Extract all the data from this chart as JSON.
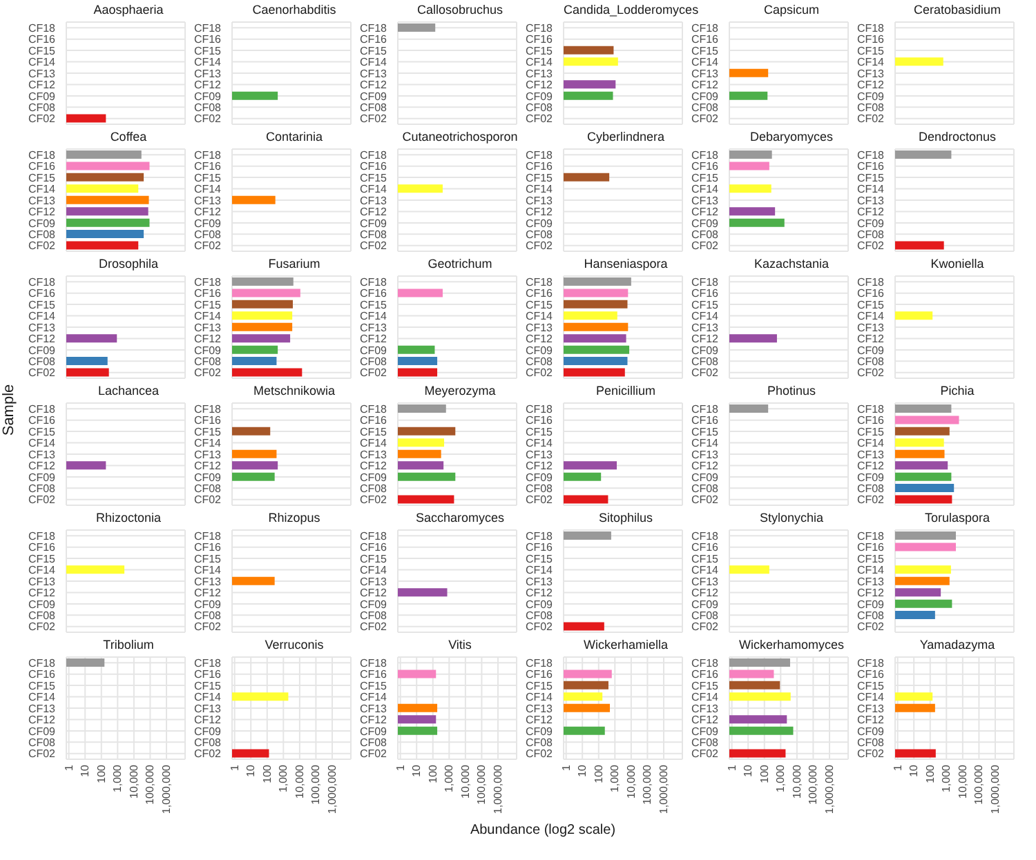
{
  "chart_data": [
    {
      "type": "bar",
      "orientation": "horizontal",
      "title": "Aaosphaeria",
      "categories": [
        "CF18",
        "CF16",
        "CF15",
        "CF14",
        "CF13",
        "CF12",
        "CF09",
        "CF08",
        "CF02"
      ],
      "values": [
        null,
        null,
        null,
        null,
        null,
        null,
        null,
        null,
        190
      ],
      "colors": [
        "#999999",
        "#f781bf",
        "#a65628",
        "#ffff33",
        "#ff7f00",
        "#984ea3",
        "#4daf4a",
        "#377eb8",
        "#e41a1c"
      ],
      "log": "x",
      "xlim": [
        0.7,
        14000000
      ],
      "xticks": [
        1,
        10,
        100,
        1000,
        10000,
        100000,
        1000000
      ],
      "grid": true,
      "tick_labels": "y"
    },
    {
      "type": "bar",
      "orientation": "horizontal",
      "title": "Caenorhabditis",
      "categories": [
        "CF18",
        "CF16",
        "CF15",
        "CF14",
        "CF13",
        "CF12",
        "CF09",
        "CF08",
        "CF02"
      ],
      "values": [
        null,
        null,
        null,
        null,
        null,
        null,
        450,
        null,
        null
      ],
      "colors": [
        "#999999",
        "#f781bf",
        "#a65628",
        "#ffff33",
        "#ff7f00",
        "#984ea3",
        "#4daf4a",
        "#377eb8",
        "#e41a1c"
      ],
      "log": "x",
      "xlim": [
        0.7,
        14000000
      ],
      "xticks": [
        1,
        10,
        100,
        1000,
        10000,
        100000,
        1000000
      ],
      "grid": true,
      "tick_labels": "y"
    },
    {
      "type": "bar",
      "orientation": "horizontal",
      "title": "Callosobruchus",
      "categories": [
        "CF18",
        "CF16",
        "CF15",
        "CF14",
        "CF13",
        "CF12",
        "CF09",
        "CF08",
        "CF02"
      ],
      "values": [
        140,
        null,
        null,
        null,
        null,
        null,
        null,
        null,
        null
      ],
      "colors": [
        "#999999",
        "#f781bf",
        "#a65628",
        "#ffff33",
        "#ff7f00",
        "#984ea3",
        "#4daf4a",
        "#377eb8",
        "#e41a1c"
      ],
      "log": "x",
      "xlim": [
        0.7,
        14000000
      ],
      "xticks": [
        1,
        10,
        100,
        1000,
        10000,
        100000,
        1000000
      ],
      "grid": true,
      "tick_labels": "y"
    },
    {
      "type": "bar",
      "orientation": "horizontal",
      "title": "Candida_Lodderomyces",
      "categories": [
        "CF18",
        "CF16",
        "CF15",
        "CF14",
        "CF13",
        "CF12",
        "CF09",
        "CF08",
        "CF02"
      ],
      "values": [
        null,
        null,
        830,
        1550,
        null,
        1100,
        760,
        null,
        null
      ],
      "colors": [
        "#999999",
        "#f781bf",
        "#a65628",
        "#ffff33",
        "#ff7f00",
        "#984ea3",
        "#4daf4a",
        "#377eb8",
        "#e41a1c"
      ],
      "log": "x",
      "xlim": [
        0.7,
        14000000
      ],
      "xticks": [
        1,
        10,
        100,
        1000,
        10000,
        100000,
        1000000
      ],
      "grid": true,
      "tick_labels": "y"
    },
    {
      "type": "bar",
      "orientation": "horizontal",
      "title": "Capsicum",
      "categories": [
        "CF18",
        "CF16",
        "CF15",
        "CF14",
        "CF13",
        "CF12",
        "CF09",
        "CF08",
        "CF02"
      ],
      "values": [
        null,
        null,
        null,
        null,
        170,
        null,
        155,
        null,
        null
      ],
      "colors": [
        "#999999",
        "#f781bf",
        "#a65628",
        "#ffff33",
        "#ff7f00",
        "#984ea3",
        "#4daf4a",
        "#377eb8",
        "#e41a1c"
      ],
      "log": "x",
      "xlim": [
        0.7,
        14000000
      ],
      "xticks": [
        1,
        10,
        100,
        1000,
        10000,
        100000,
        1000000
      ],
      "grid": true,
      "tick_labels": "y"
    },
    {
      "type": "bar",
      "orientation": "horizontal",
      "title": "Ceratobasidium",
      "categories": [
        "CF18",
        "CF16",
        "CF15",
        "CF14",
        "CF13",
        "CF12",
        "CF09",
        "CF08",
        "CF02"
      ],
      "values": [
        null,
        null,
        null,
        640,
        null,
        null,
        null,
        null,
        null
      ],
      "colors": [
        "#999999",
        "#f781bf",
        "#a65628",
        "#ffff33",
        "#ff7f00",
        "#984ea3",
        "#4daf4a",
        "#377eb8",
        "#e41a1c"
      ],
      "log": "x",
      "xlim": [
        0.7,
        14000000
      ],
      "xticks": [
        1,
        10,
        100,
        1000,
        10000,
        100000,
        1000000
      ],
      "grid": true,
      "tick_labels": "y"
    },
    {
      "type": "bar",
      "orientation": "horizontal",
      "title": "Coffea",
      "categories": [
        "CF18",
        "CF16",
        "CF15",
        "CF14",
        "CF13",
        "CF12",
        "CF09",
        "CF08",
        "CF02"
      ],
      "values": [
        29000,
        91000,
        40000,
        18600,
        83000,
        76000,
        91000,
        40000,
        18600
      ],
      "colors": [
        "#999999",
        "#f781bf",
        "#a65628",
        "#ffff33",
        "#ff7f00",
        "#984ea3",
        "#4daf4a",
        "#377eb8",
        "#e41a1c"
      ],
      "log": "x",
      "xlim": [
        0.7,
        14000000
      ],
      "xticks": [
        1,
        10,
        100,
        1000,
        10000,
        100000,
        1000000
      ],
      "grid": true,
      "tick_labels": "y"
    },
    {
      "type": "bar",
      "orientation": "horizontal",
      "title": "Contarinia",
      "categories": [
        "CF18",
        "CF16",
        "CF15",
        "CF14",
        "CF13",
        "CF12",
        "CF09",
        "CF08",
        "CF02"
      ],
      "values": [
        null,
        null,
        null,
        null,
        320,
        null,
        null,
        null,
        null
      ],
      "colors": [
        "#999999",
        "#f781bf",
        "#a65628",
        "#ffff33",
        "#ff7f00",
        "#984ea3",
        "#4daf4a",
        "#377eb8",
        "#e41a1c"
      ],
      "log": "x",
      "xlim": [
        0.7,
        14000000
      ],
      "xticks": [
        1,
        10,
        100,
        1000,
        10000,
        100000,
        1000000
      ],
      "grid": true,
      "tick_labels": "y"
    },
    {
      "type": "bar",
      "orientation": "horizontal",
      "title": "Cutaneotrichosporon",
      "categories": [
        "CF18",
        "CF16",
        "CF15",
        "CF14",
        "CF13",
        "CF12",
        "CF09",
        "CF08",
        "CF02"
      ],
      "values": [
        null,
        null,
        null,
        400,
        null,
        null,
        null,
        null,
        null
      ],
      "colors": [
        "#999999",
        "#f781bf",
        "#a65628",
        "#ffff33",
        "#ff7f00",
        "#984ea3",
        "#4daf4a",
        "#377eb8",
        "#e41a1c"
      ],
      "log": "x",
      "xlim": [
        0.7,
        14000000
      ],
      "xticks": [
        1,
        10,
        100,
        1000,
        10000,
        100000,
        1000000
      ],
      "grid": true,
      "tick_labels": "y"
    },
    {
      "type": "bar",
      "orientation": "horizontal",
      "title": "Cyberlindnera",
      "categories": [
        "CF18",
        "CF16",
        "CF15",
        "CF14",
        "CF13",
        "CF12",
        "CF09",
        "CF08",
        "CF02"
      ],
      "values": [
        null,
        null,
        450,
        null,
        null,
        null,
        null,
        null,
        null
      ],
      "colors": [
        "#999999",
        "#f781bf",
        "#a65628",
        "#ffff33",
        "#ff7f00",
        "#984ea3",
        "#4daf4a",
        "#377eb8",
        "#e41a1c"
      ],
      "log": "x",
      "xlim": [
        0.7,
        14000000
      ],
      "xticks": [
        1,
        10,
        100,
        1000,
        10000,
        100000,
        1000000
      ],
      "grid": true,
      "tick_labels": "y"
    },
    {
      "type": "bar",
      "orientation": "horizontal",
      "title": "Debaryomyces",
      "categories": [
        "CF18",
        "CF16",
        "CF15",
        "CF14",
        "CF13",
        "CF12",
        "CF09",
        "CF08",
        "CF02"
      ],
      "values": [
        290,
        200,
        null,
        265,
        null,
        450,
        1700,
        null,
        null
      ],
      "colors": [
        "#999999",
        "#f781bf",
        "#a65628",
        "#ffff33",
        "#ff7f00",
        "#984ea3",
        "#4daf4a",
        "#377eb8",
        "#e41a1c"
      ],
      "log": "x",
      "xlim": [
        0.7,
        14000000
      ],
      "xticks": [
        1,
        10,
        100,
        1000,
        10000,
        100000,
        1000000
      ],
      "grid": true,
      "tick_labels": "y"
    },
    {
      "type": "bar",
      "orientation": "horizontal",
      "title": "Dendroctonus",
      "categories": [
        "CF18",
        "CF16",
        "CF15",
        "CF14",
        "CF13",
        "CF12",
        "CF09",
        "CF08",
        "CF02"
      ],
      "values": [
        2000,
        null,
        null,
        null,
        null,
        null,
        null,
        null,
        700
      ],
      "colors": [
        "#999999",
        "#f781bf",
        "#a65628",
        "#ffff33",
        "#ff7f00",
        "#984ea3",
        "#4daf4a",
        "#377eb8",
        "#e41a1c"
      ],
      "log": "x",
      "xlim": [
        0.7,
        14000000
      ],
      "xticks": [
        1,
        10,
        100,
        1000,
        10000,
        100000,
        1000000
      ],
      "grid": true,
      "tick_labels": "y"
    },
    {
      "type": "bar",
      "orientation": "horizontal",
      "title": "Drosophila",
      "categories": [
        "CF18",
        "CF16",
        "CF15",
        "CF14",
        "CF13",
        "CF12",
        "CF09",
        "CF08",
        "CF02"
      ],
      "values": [
        null,
        null,
        null,
        null,
        null,
        900,
        null,
        240,
        290
      ],
      "colors": [
        "#999999",
        "#f781bf",
        "#a65628",
        "#ffff33",
        "#ff7f00",
        "#984ea3",
        "#4daf4a",
        "#377eb8",
        "#e41a1c"
      ],
      "log": "x",
      "xlim": [
        0.7,
        14000000
      ],
      "xticks": [
        1,
        10,
        100,
        1000,
        10000,
        100000,
        1000000
      ],
      "grid": true,
      "tick_labels": "y"
    },
    {
      "type": "bar",
      "orientation": "horizontal",
      "title": "Fusarium",
      "categories": [
        "CF18",
        "CF16",
        "CF15",
        "CF14",
        "CF13",
        "CF12",
        "CF09",
        "CF08",
        "CF02"
      ],
      "values": [
        4100,
        11000,
        3800,
        3500,
        3500,
        2600,
        450,
        380,
        14000
      ],
      "colors": [
        "#999999",
        "#f781bf",
        "#a65628",
        "#ffff33",
        "#ff7f00",
        "#984ea3",
        "#4daf4a",
        "#377eb8",
        "#e41a1c"
      ],
      "log": "x",
      "xlim": [
        0.7,
        14000000
      ],
      "xticks": [
        1,
        10,
        100,
        1000,
        10000,
        100000,
        1000000
      ],
      "grid": true,
      "tick_labels": "y"
    },
    {
      "type": "bar",
      "orientation": "horizontal",
      "title": "Geotrichum",
      "categories": [
        "CF18",
        "CF16",
        "CF15",
        "CF14",
        "CF13",
        "CF12",
        "CF09",
        "CF08",
        "CF02"
      ],
      "values": [
        null,
        400,
        null,
        null,
        null,
        null,
        130,
        185,
        185
      ],
      "colors": [
        "#999999",
        "#f781bf",
        "#a65628",
        "#ffff33",
        "#ff7f00",
        "#984ea3",
        "#4daf4a",
        "#377eb8",
        "#e41a1c"
      ],
      "log": "x",
      "xlim": [
        0.7,
        14000000
      ],
      "xticks": [
        1,
        10,
        100,
        1000,
        10000,
        100000,
        1000000
      ],
      "grid": true,
      "tick_labels": "y"
    },
    {
      "type": "bar",
      "orientation": "horizontal",
      "title": "Hanseniaspora",
      "categories": [
        "CF18",
        "CF16",
        "CF15",
        "CF14",
        "CF13",
        "CF12",
        "CF09",
        "CF08",
        "CF02"
      ],
      "values": [
        10000,
        6400,
        5900,
        1400,
        6400,
        4900,
        7600,
        5900,
        4100
      ],
      "colors": [
        "#999999",
        "#f781bf",
        "#a65628",
        "#ffff33",
        "#ff7f00",
        "#984ea3",
        "#4daf4a",
        "#377eb8",
        "#e41a1c"
      ],
      "log": "x",
      "xlim": [
        0.7,
        14000000
      ],
      "xticks": [
        1,
        10,
        100,
        1000,
        10000,
        100000,
        1000000
      ],
      "grid": true,
      "tick_labels": "y"
    },
    {
      "type": "bar",
      "orientation": "horizontal",
      "title": "Kazachstania",
      "categories": [
        "CF18",
        "CF16",
        "CF15",
        "CF14",
        "CF13",
        "CF12",
        "CF09",
        "CF08",
        "CF02"
      ],
      "values": [
        null,
        null,
        null,
        null,
        null,
        590,
        null,
        null,
        null
      ],
      "colors": [
        "#999999",
        "#f781bf",
        "#a65628",
        "#ffff33",
        "#ff7f00",
        "#984ea3",
        "#4daf4a",
        "#377eb8",
        "#e41a1c"
      ],
      "log": "x",
      "xlim": [
        0.7,
        14000000
      ],
      "xticks": [
        1,
        10,
        100,
        1000,
        10000,
        100000,
        1000000
      ],
      "grid": true,
      "tick_labels": "y"
    },
    {
      "type": "bar",
      "orientation": "horizontal",
      "title": "Kwoniella",
      "categories": [
        "CF18",
        "CF16",
        "CF15",
        "CF14",
        "CF13",
        "CF12",
        "CF09",
        "CF08",
        "CF02"
      ],
      "values": [
        null,
        null,
        null,
        140,
        null,
        null,
        null,
        null,
        null
      ],
      "colors": [
        "#999999",
        "#f781bf",
        "#a65628",
        "#ffff33",
        "#ff7f00",
        "#984ea3",
        "#4daf4a",
        "#377eb8",
        "#e41a1c"
      ],
      "log": "x",
      "xlim": [
        0.7,
        14000000
      ],
      "xticks": [
        1,
        10,
        100,
        1000,
        10000,
        100000,
        1000000
      ],
      "grid": true,
      "tick_labels": "y"
    },
    {
      "type": "bar",
      "orientation": "horizontal",
      "title": "Lachancea",
      "ylabel": "Sample",
      "categories": [
        "CF18",
        "CF16",
        "CF15",
        "CF14",
        "CF13",
        "CF12",
        "CF09",
        "CF08",
        "CF02"
      ],
      "values": [
        null,
        null,
        null,
        null,
        null,
        190,
        null,
        null,
        null
      ],
      "colors": [
        "#999999",
        "#f781bf",
        "#a65628",
        "#ffff33",
        "#ff7f00",
        "#984ea3",
        "#4daf4a",
        "#377eb8",
        "#e41a1c"
      ],
      "log": "x",
      "xlim": [
        0.7,
        14000000
      ],
      "xticks": [
        1,
        10,
        100,
        1000,
        10000,
        100000,
        1000000
      ],
      "grid": true,
      "tick_labels": "y"
    },
    {
      "type": "bar",
      "orientation": "horizontal",
      "title": "Metschnikowia",
      "categories": [
        "CF18",
        "CF16",
        "CF15",
        "CF14",
        "CF13",
        "CF12",
        "CF09",
        "CF08",
        "CF02"
      ],
      "values": [
        null,
        null,
        155,
        null,
        380,
        450,
        290,
        null,
        null
      ],
      "colors": [
        "#999999",
        "#f781bf",
        "#a65628",
        "#ffff33",
        "#ff7f00",
        "#984ea3",
        "#4daf4a",
        "#377eb8",
        "#e41a1c"
      ],
      "log": "x",
      "xlim": [
        0.7,
        14000000
      ],
      "xticks": [
        1,
        10,
        100,
        1000,
        10000,
        100000,
        1000000
      ],
      "grid": true,
      "tick_labels": "y"
    },
    {
      "type": "bar",
      "orientation": "horizontal",
      "title": "Meyerozyma",
      "categories": [
        "CF18",
        "CF16",
        "CF15",
        "CF14",
        "CF13",
        "CF12",
        "CF09",
        "CF08",
        "CF02"
      ],
      "values": [
        640,
        null,
        2400,
        490,
        320,
        450,
        2400,
        null,
        2000
      ],
      "colors": [
        "#999999",
        "#f781bf",
        "#a65628",
        "#ffff33",
        "#ff7f00",
        "#984ea3",
        "#4daf4a",
        "#377eb8",
        "#e41a1c"
      ],
      "log": "x",
      "xlim": [
        0.7,
        14000000
      ],
      "xticks": [
        1,
        10,
        100,
        1000,
        10000,
        100000,
        1000000
      ],
      "grid": true,
      "tick_labels": "y"
    },
    {
      "type": "bar",
      "orientation": "horizontal",
      "title": "Penicillium",
      "categories": [
        "CF18",
        "CF16",
        "CF15",
        "CF14",
        "CF13",
        "CF12",
        "CF09",
        "CF08",
        "CF02"
      ],
      "values": [
        null,
        null,
        null,
        null,
        null,
        1300,
        140,
        null,
        380
      ],
      "colors": [
        "#999999",
        "#f781bf",
        "#a65628",
        "#ffff33",
        "#ff7f00",
        "#984ea3",
        "#4daf4a",
        "#377eb8",
        "#e41a1c"
      ],
      "log": "x",
      "xlim": [
        0.7,
        14000000
      ],
      "xticks": [
        1,
        10,
        100,
        1000,
        10000,
        100000,
        1000000
      ],
      "grid": true,
      "tick_labels": "y"
    },
    {
      "type": "bar",
      "orientation": "horizontal",
      "title": "Photinus",
      "categories": [
        "CF18",
        "CF16",
        "CF15",
        "CF14",
        "CF13",
        "CF12",
        "CF09",
        "CF08",
        "CF02"
      ],
      "values": [
        170,
        null,
        null,
        null,
        null,
        null,
        null,
        null,
        null
      ],
      "colors": [
        "#999999",
        "#f781bf",
        "#a65628",
        "#ffff33",
        "#ff7f00",
        "#984ea3",
        "#4daf4a",
        "#377eb8",
        "#e41a1c"
      ],
      "log": "x",
      "xlim": [
        0.7,
        14000000
      ],
      "xticks": [
        1,
        10,
        100,
        1000,
        10000,
        100000,
        1000000
      ],
      "grid": true,
      "tick_labels": "y"
    },
    {
      "type": "bar",
      "orientation": "horizontal",
      "title": "Pichia",
      "categories": [
        "CF18",
        "CF16",
        "CF15",
        "CF14",
        "CF13",
        "CF12",
        "CF09",
        "CF08",
        "CF02"
      ],
      "values": [
        2000,
        5900,
        1550,
        700,
        760,
        1200,
        2000,
        2900,
        2200
      ],
      "colors": [
        "#999999",
        "#f781bf",
        "#a65628",
        "#ffff33",
        "#ff7f00",
        "#984ea3",
        "#4daf4a",
        "#377eb8",
        "#e41a1c"
      ],
      "log": "x",
      "xlim": [
        0.7,
        14000000
      ],
      "xticks": [
        1,
        10,
        100,
        1000,
        10000,
        100000,
        1000000
      ],
      "grid": true,
      "tick_labels": "y"
    },
    {
      "type": "bar",
      "orientation": "horizontal",
      "title": "Rhizoctonia",
      "categories": [
        "CF18",
        "CF16",
        "CF15",
        "CF14",
        "CF13",
        "CF12",
        "CF09",
        "CF08",
        "CF02"
      ],
      "values": [
        null,
        null,
        null,
        2600,
        null,
        null,
        null,
        null,
        null
      ],
      "colors": [
        "#999999",
        "#f781bf",
        "#a65628",
        "#ffff33",
        "#ff7f00",
        "#984ea3",
        "#4daf4a",
        "#377eb8",
        "#e41a1c"
      ],
      "log": "x",
      "xlim": [
        0.7,
        14000000
      ],
      "xticks": [
        1,
        10,
        100,
        1000,
        10000,
        100000,
        1000000
      ],
      "grid": true,
      "tick_labels": "y"
    },
    {
      "type": "bar",
      "orientation": "horizontal",
      "title": "Rhizopus",
      "categories": [
        "CF18",
        "CF16",
        "CF15",
        "CF14",
        "CF13",
        "CF12",
        "CF09",
        "CF08",
        "CF02"
      ],
      "values": [
        null,
        null,
        null,
        null,
        290,
        null,
        null,
        null,
        null
      ],
      "colors": [
        "#999999",
        "#f781bf",
        "#a65628",
        "#ffff33",
        "#ff7f00",
        "#984ea3",
        "#4daf4a",
        "#377eb8",
        "#e41a1c"
      ],
      "log": "x",
      "xlim": [
        0.7,
        14000000
      ],
      "xticks": [
        1,
        10,
        100,
        1000,
        10000,
        100000,
        1000000
      ],
      "grid": true,
      "tick_labels": "y"
    },
    {
      "type": "bar",
      "orientation": "horizontal",
      "title": "Saccharomyces",
      "categories": [
        "CF18",
        "CF16",
        "CF15",
        "CF14",
        "CF13",
        "CF12",
        "CF09",
        "CF08",
        "CF02"
      ],
      "values": [
        null,
        null,
        null,
        null,
        null,
        760,
        null,
        null,
        null
      ],
      "colors": [
        "#999999",
        "#f781bf",
        "#a65628",
        "#ffff33",
        "#ff7f00",
        "#984ea3",
        "#4daf4a",
        "#377eb8",
        "#e41a1c"
      ],
      "log": "x",
      "xlim": [
        0.7,
        14000000
      ],
      "xticks": [
        1,
        10,
        100,
        1000,
        10000,
        100000,
        1000000
      ],
      "grid": true,
      "tick_labels": "y"
    },
    {
      "type": "bar",
      "orientation": "horizontal",
      "title": "Sitophilus",
      "categories": [
        "CF18",
        "CF16",
        "CF15",
        "CF14",
        "CF13",
        "CF12",
        "CF09",
        "CF08",
        "CF02"
      ],
      "values": [
        590,
        null,
        null,
        null,
        null,
        null,
        null,
        null,
        220
      ],
      "colors": [
        "#999999",
        "#f781bf",
        "#a65628",
        "#ffff33",
        "#ff7f00",
        "#984ea3",
        "#4daf4a",
        "#377eb8",
        "#e41a1c"
      ],
      "log": "x",
      "xlim": [
        0.7,
        14000000
      ],
      "xticks": [
        1,
        10,
        100,
        1000,
        10000,
        100000,
        1000000
      ],
      "grid": true,
      "tick_labels": "y"
    },
    {
      "type": "bar",
      "orientation": "horizontal",
      "title": "Stylonychia",
      "categories": [
        "CF18",
        "CF16",
        "CF15",
        "CF14",
        "CF13",
        "CF12",
        "CF09",
        "CF08",
        "CF02"
      ],
      "values": [
        null,
        null,
        null,
        200,
        null,
        null,
        null,
        null,
        null
      ],
      "colors": [
        "#999999",
        "#f781bf",
        "#a65628",
        "#ffff33",
        "#ff7f00",
        "#984ea3",
        "#4daf4a",
        "#377eb8",
        "#e41a1c"
      ],
      "log": "x",
      "xlim": [
        0.7,
        14000000
      ],
      "xticks": [
        1,
        10,
        100,
        1000,
        10000,
        100000,
        1000000
      ],
      "grid": true,
      "tick_labels": "y"
    },
    {
      "type": "bar",
      "orientation": "horizontal",
      "title": "Torulaspora",
      "categories": [
        "CF18",
        "CF16",
        "CF15",
        "CF14",
        "CF13",
        "CF12",
        "CF09",
        "CF08",
        "CF02"
      ],
      "values": [
        3800,
        3800,
        null,
        1900,
        1550,
        450,
        2200,
        200,
        null
      ],
      "colors": [
        "#999999",
        "#f781bf",
        "#a65628",
        "#ffff33",
        "#ff7f00",
        "#984ea3",
        "#4daf4a",
        "#377eb8",
        "#e41a1c"
      ],
      "log": "x",
      "xlim": [
        0.7,
        14000000
      ],
      "xticks": [
        1,
        10,
        100,
        1000,
        10000,
        100000,
        1000000
      ],
      "grid": true,
      "tick_labels": "y"
    },
    {
      "type": "bar",
      "orientation": "horizontal",
      "title": "Tribolium",
      "categories": [
        "CF18",
        "CF16",
        "CF15",
        "CF14",
        "CF13",
        "CF12",
        "CF09",
        "CF08",
        "CF02"
      ],
      "values": [
        155,
        null,
        null,
        null,
        null,
        null,
        null,
        null,
        null
      ],
      "colors": [
        "#999999",
        "#f781bf",
        "#a65628",
        "#ffff33",
        "#ff7f00",
        "#984ea3",
        "#4daf4a",
        "#377eb8",
        "#e41a1c"
      ],
      "log": "x",
      "xlim": [
        0.7,
        14000000
      ],
      "xticks": [
        1,
        10,
        100,
        {
          "value": 1000,
          "label": "1,000"
        },
        {
          "value": 10000,
          "label": "10,000"
        },
        {
          "value": 100000,
          "label": "100,000"
        },
        {
          "value": 1000000,
          "label": "1,000,000"
        }
      ],
      "grid": true
    },
    {
      "type": "bar",
      "orientation": "horizontal",
      "title": "Verruconis",
      "categories": [
        "CF18",
        "CF16",
        "CF15",
        "CF14",
        "CF13",
        "CF12",
        "CF09",
        "CF08",
        "CF02"
      ],
      "values": [
        null,
        null,
        null,
        2000,
        null,
        null,
        null,
        null,
        130
      ],
      "colors": [
        "#999999",
        "#f781bf",
        "#a65628",
        "#ffff33",
        "#ff7f00",
        "#984ea3",
        "#4daf4a",
        "#377eb8",
        "#e41a1c"
      ],
      "log": "x",
      "xlim": [
        0.7,
        14000000
      ],
      "xticks": [
        1,
        10,
        100,
        {
          "value": 1000,
          "label": "1,000"
        },
        {
          "value": 10000,
          "label": "10,000"
        },
        {
          "value": 100000,
          "label": "100,000"
        },
        {
          "value": 1000000,
          "label": "1,000,000"
        }
      ],
      "grid": true
    },
    {
      "type": "bar",
      "orientation": "horizontal",
      "title": "Vitis",
      "categories": [
        "CF18",
        "CF16",
        "CF15",
        "CF14",
        "CF13",
        "CF12",
        "CF09",
        "CF08",
        "CF02"
      ],
      "values": [
        null,
        155,
        null,
        null,
        185,
        155,
        185,
        null,
        null
      ],
      "colors": [
        "#999999",
        "#f781bf",
        "#a65628",
        "#ffff33",
        "#ff7f00",
        "#984ea3",
        "#4daf4a",
        "#377eb8",
        "#e41a1c"
      ],
      "log": "x",
      "xlim": [
        0.7,
        14000000
      ],
      "xticks": [
        1,
        10,
        100,
        {
          "value": 1000,
          "label": "1,000"
        },
        {
          "value": 10000,
          "label": "10,000"
        },
        {
          "value": 100000,
          "label": "100,000"
        },
        {
          "value": 1000000,
          "label": "1,000,000"
        }
      ],
      "grid": true
    },
    {
      "type": "bar",
      "orientation": "horizontal",
      "title": "Wickerhamiella",
      "xlabel": "Abundance (log2 scale)",
      "categories": [
        "CF18",
        "CF16",
        "CF15",
        "CF14",
        "CF13",
        "CF12",
        "CF09",
        "CF08",
        "CF02"
      ],
      "values": [
        null,
        640,
        400,
        170,
        490,
        null,
        240,
        null,
        null
      ],
      "colors": [
        "#999999",
        "#f781bf",
        "#a65628",
        "#ffff33",
        "#ff7f00",
        "#984ea3",
        "#4daf4a",
        "#377eb8",
        "#e41a1c"
      ],
      "log": "x",
      "xlim": [
        0.7,
        14000000
      ],
      "xticks": [
        1,
        10,
        100,
        {
          "value": 1000,
          "label": "1,000"
        },
        {
          "value": 10000,
          "label": "10,000"
        },
        {
          "value": 100000,
          "label": "100,000"
        },
        {
          "value": 1000000,
          "label": "1,000,000"
        }
      ],
      "grid": true
    },
    {
      "type": "bar",
      "orientation": "horizontal",
      "title": "Wickerhamomyces",
      "categories": [
        "CF18",
        "CF16",
        "CF15",
        "CF14",
        "CF13",
        "CF12",
        "CF09",
        "CF08",
        "CF02"
      ],
      "values": [
        3800,
        380,
        900,
        4100,
        null,
        2400,
        5900,
        null,
        2000
      ],
      "colors": [
        "#999999",
        "#f781bf",
        "#a65628",
        "#ffff33",
        "#ff7f00",
        "#984ea3",
        "#4daf4a",
        "#377eb8",
        "#e41a1c"
      ],
      "log": "x",
      "xlim": [
        0.7,
        14000000
      ],
      "xticks": [
        1,
        10,
        100,
        {
          "value": 1000,
          "label": "1,000"
        },
        {
          "value": 10000,
          "label": "10,000"
        },
        {
          "value": 100000,
          "label": "100,000"
        },
        {
          "value": 1000000,
          "label": "1,000,000"
        }
      ],
      "grid": true
    },
    {
      "type": "bar",
      "orientation": "horizontal",
      "title": "Yamadazyma",
      "categories": [
        "CF18",
        "CF16",
        "CF15",
        "CF14",
        "CF13",
        "CF12",
        "CF09",
        "CF08",
        "CF02"
      ],
      "values": [
        null,
        null,
        null,
        140,
        200,
        null,
        null,
        null,
        220
      ],
      "colors": [
        "#999999",
        "#f781bf",
        "#a65628",
        "#ffff33",
        "#ff7f00",
        "#984ea3",
        "#4daf4a",
        "#377eb8",
        "#e41a1c"
      ],
      "log": "x",
      "xlim": [
        0.7,
        14000000
      ],
      "xticks": [
        1,
        10,
        100,
        {
          "value": 1000,
          "label": "1,000"
        },
        {
          "value": 10000,
          "label": "10,000"
        },
        {
          "value": 100000,
          "label": "100,000"
        },
        {
          "value": 1000000,
          "label": "1,000,000"
        }
      ],
      "grid": true
    }
  ]
}
